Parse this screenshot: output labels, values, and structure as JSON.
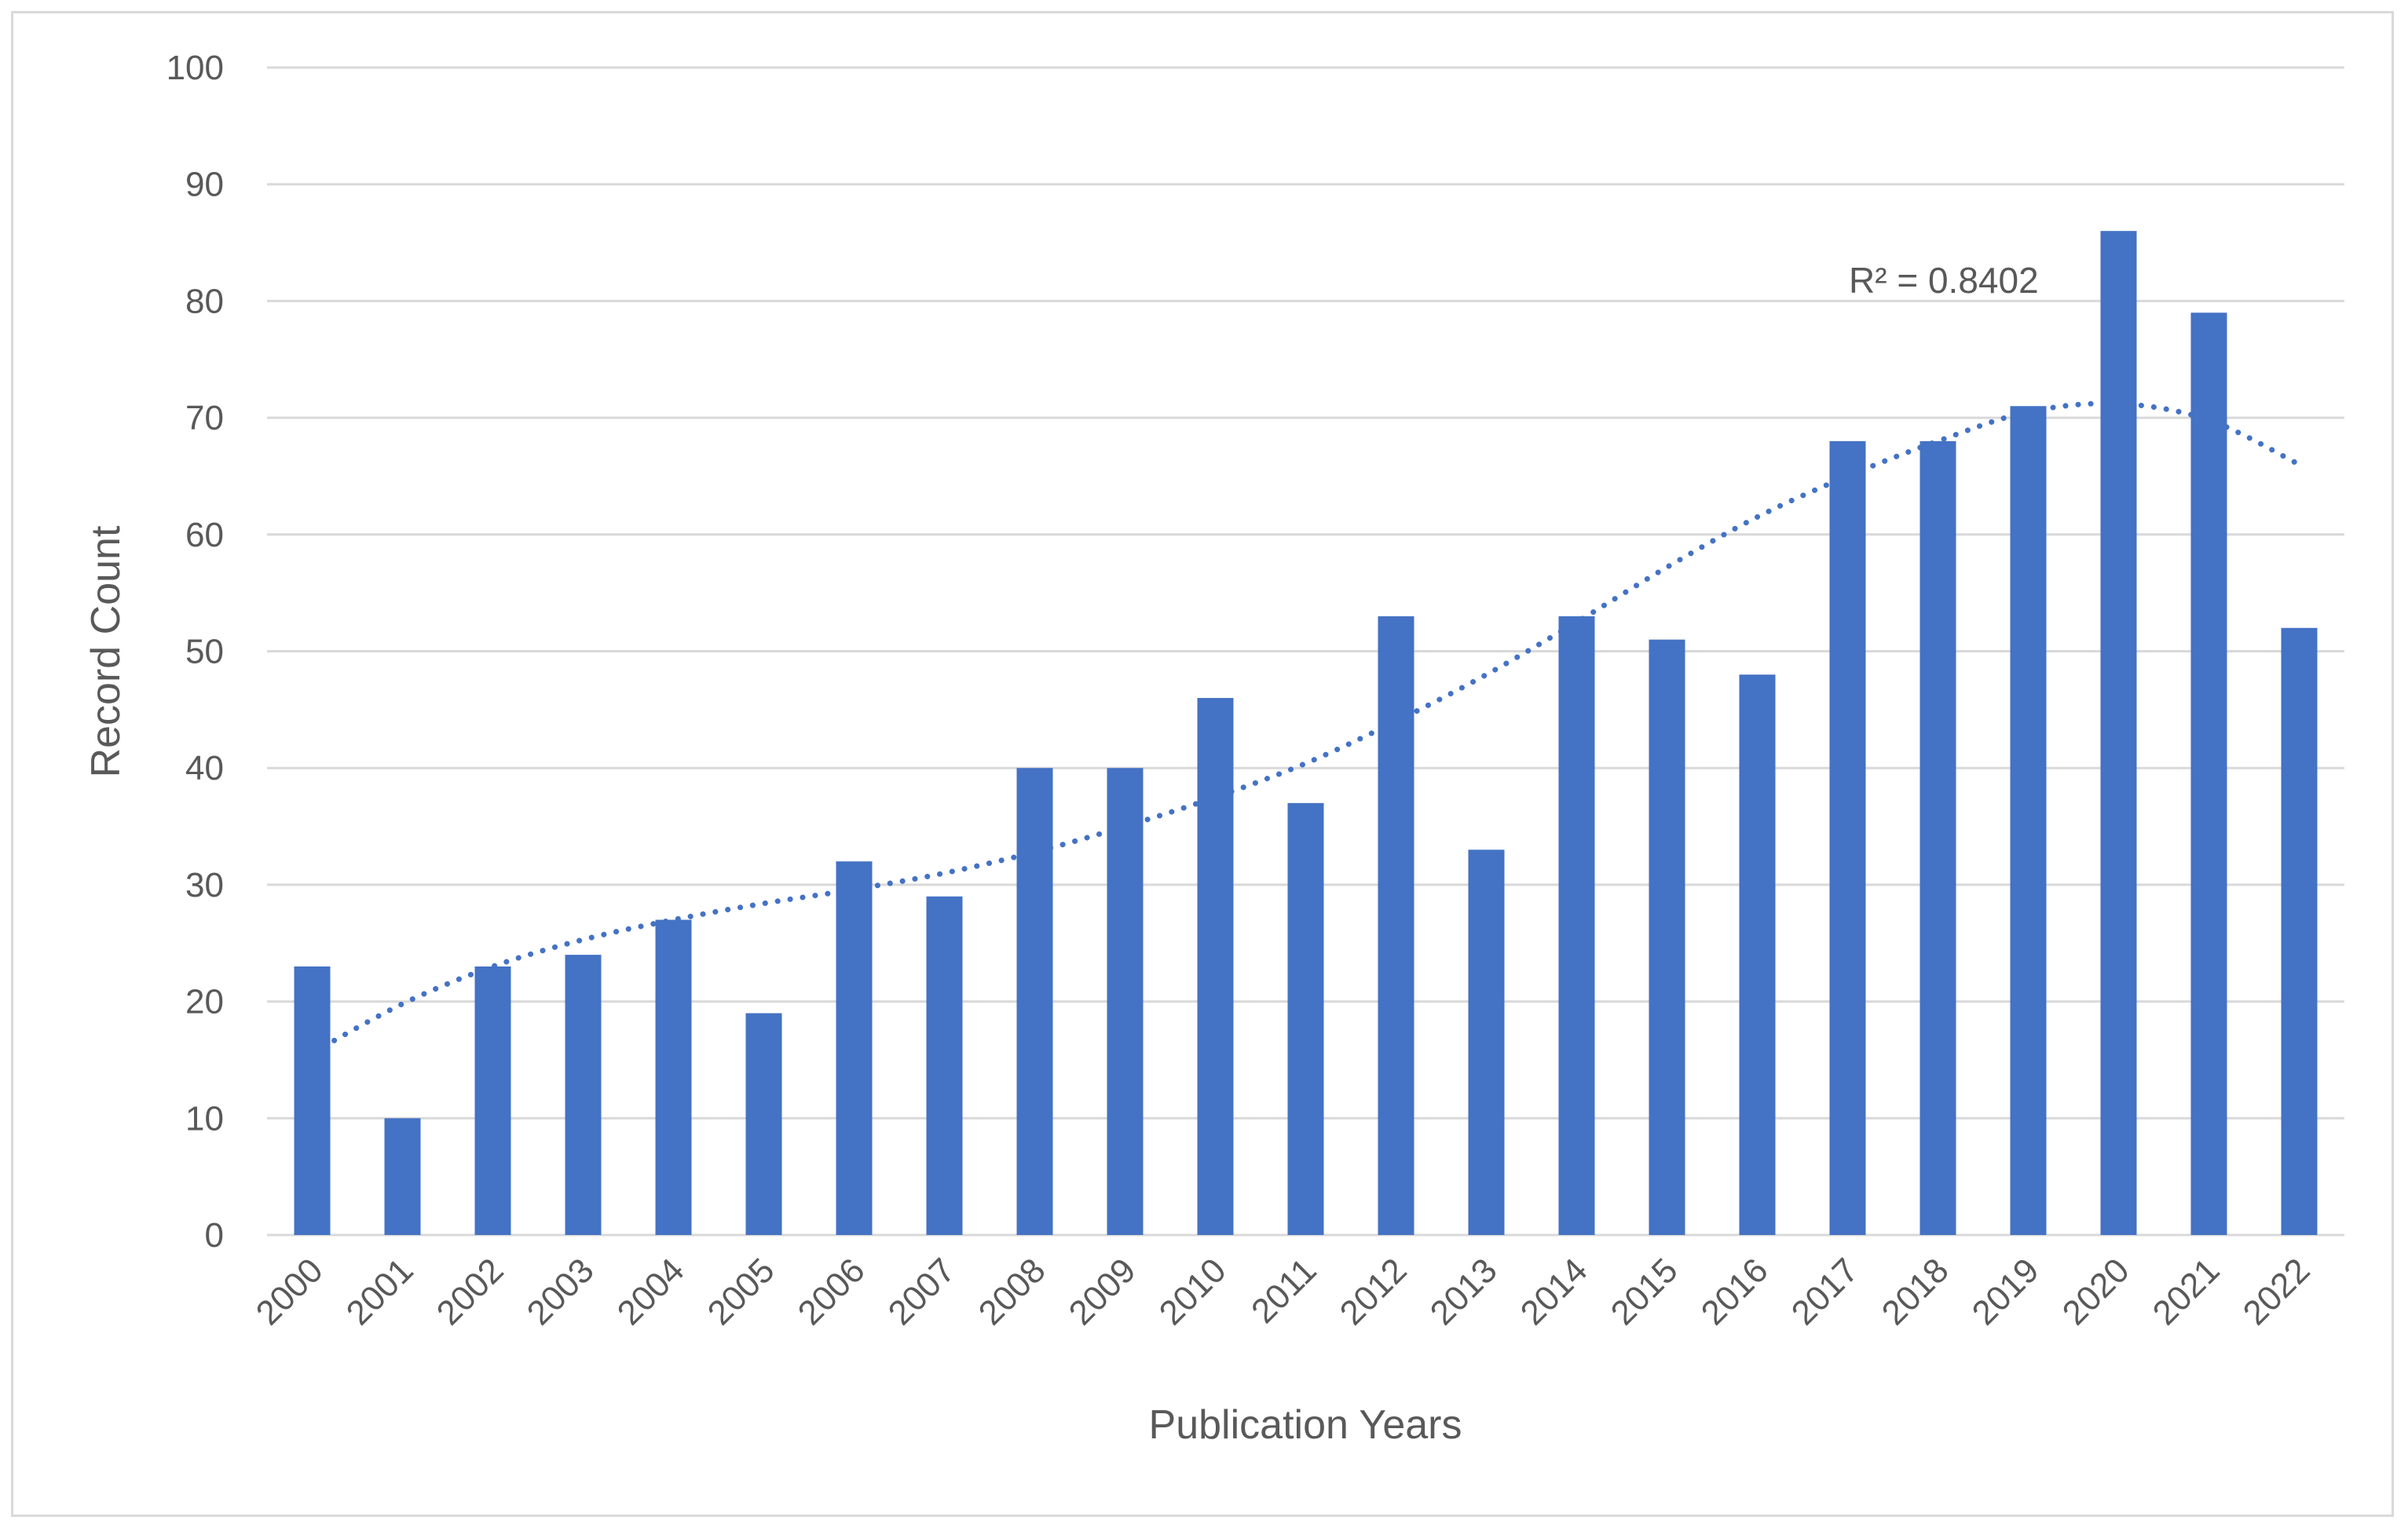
{
  "chart_data": {
    "type": "bar",
    "title": "",
    "xlabel": "Publication Years",
    "ylabel": "Record Count",
    "ylim": [
      0,
      100
    ],
    "yticks": [
      0,
      10,
      20,
      30,
      40,
      50,
      60,
      70,
      80,
      90,
      100
    ],
    "grid": true,
    "legend": "none",
    "categories": [
      "2000",
      "2001",
      "2002",
      "2003",
      "2004",
      "2005",
      "2006",
      "2007",
      "2008",
      "2009",
      "2010",
      "2011",
      "2012",
      "2013",
      "2014",
      "2015",
      "2016",
      "2017",
      "2018",
      "2019",
      "2020",
      "2021",
      "2022"
    ],
    "values": [
      23,
      10,
      23,
      24,
      27,
      19,
      32,
      29,
      40,
      40,
      46,
      37,
      53,
      33,
      53,
      51,
      48,
      68,
      68,
      71,
      86,
      79,
      52
    ],
    "trendline": {
      "type": "polynomial",
      "style": "dotted",
      "values": [
        15.6,
        19.8,
        23.0,
        25.3,
        27.0,
        28.4,
        29.6,
        31.0,
        32.8,
        35.0,
        37.5,
        40.4,
        44.0,
        48.0,
        52.5,
        57.2,
        61.5,
        65.0,
        68.0,
        70.5,
        71.2,
        69.8,
        66.0
      ],
      "annotation": "R² = 0.8402"
    },
    "colors": {
      "bar": "#4472c4",
      "trendline": "#4472c4",
      "grid": "#d9d9d9",
      "text": "#595959"
    }
  }
}
